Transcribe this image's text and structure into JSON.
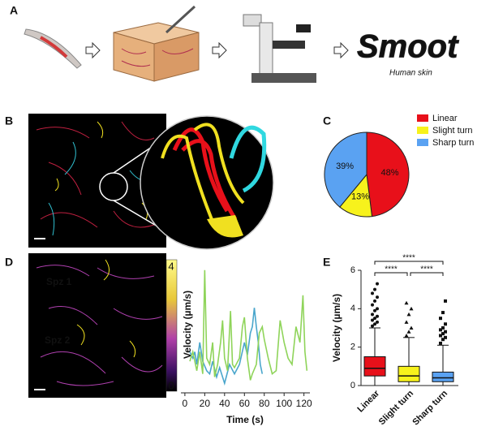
{
  "panel_labels": [
    "A",
    "B",
    "C",
    "D",
    "E"
  ],
  "logo": {
    "title": "Smoot",
    "subtitle": "Human skin"
  },
  "chart_data": [
    {
      "type": "pie",
      "categories": [
        "Linear",
        "Slight turn",
        "Sharp turn"
      ],
      "values": [
        48,
        13,
        39
      ],
      "value_labels": [
        "48%",
        "13%",
        "39%"
      ],
      "colors": [
        "#e8101a",
        "#f7f21c",
        "#5aa2f2"
      ]
    },
    {
      "type": "line",
      "y_label": "Velocity (µm/s)",
      "x_label": "Time (s)",
      "series": [
        {
          "name": "Spz 1",
          "color": "#4aa6cc",
          "x": [
            5,
            8,
            10,
            12,
            15,
            18,
            22,
            25,
            28,
            32,
            35,
            40,
            45,
            50,
            55,
            60,
            63,
            66,
            68,
            70,
            72,
            74,
            76,
            78
          ],
          "values": [
            1.2,
            1.0,
            1.2,
            0.8,
            1.5,
            0.9,
            0.6,
            0.5,
            0.9,
            0.4,
            0.7,
            0.2,
            0.8,
            0.5,
            0.8,
            1.5,
            1.1,
            1.8,
            2.0,
            2.6,
            2.0,
            1.5,
            0.8,
            0.5
          ]
        },
        {
          "name": "Spz 2",
          "color": "#8fd45a",
          "x": [
            5,
            8,
            12,
            15,
            18,
            20,
            22,
            25,
            28,
            30,
            33,
            36,
            38,
            40,
            43,
            46,
            48,
            50,
            55,
            58,
            60,
            63,
            66,
            68,
            72,
            75,
            78,
            80,
            84,
            88,
            92,
            96,
            100,
            104,
            108,
            112,
            116,
            119,
            121,
            123
          ],
          "values": [
            0.9,
            1.2,
            0.6,
            1.2,
            0.5,
            3.8,
            1.0,
            0.8,
            1.5,
            0.4,
            0.8,
            1.5,
            2.2,
            1.0,
            0.6,
            2.5,
            0.8,
            0.7,
            1.0,
            2.0,
            2.3,
            1.0,
            0.3,
            0.5,
            0.8,
            1.8,
            2.0,
            1.6,
            1.0,
            0.5,
            0.6,
            2.2,
            1.5,
            1.0,
            0.8,
            2.0,
            1.5,
            3.0,
            1.2,
            0.6
          ]
        }
      ],
      "xlim": [
        -4,
        126
      ],
      "xticks": [
        0,
        20,
        40,
        60,
        80,
        100,
        120
      ],
      "ylim": [
        0,
        4
      ],
      "yticks": [
        0,
        4
      ]
    },
    {
      "type": "box",
      "y_label": "Velocity (µm/s)",
      "categories": [
        "Linear",
        "Slight turn",
        "Sharp turn"
      ],
      "colors": [
        "#e8101a",
        "#f7f21c",
        "#5aa2f2"
      ],
      "stats": [
        {
          "min": 0,
          "q1": 0.5,
          "median": 0.9,
          "q3": 1.5,
          "max": 3.0,
          "outliers": [
            3.1,
            3.2,
            3.3,
            3.4,
            3.5,
            3.6,
            3.7,
            3.9,
            4.0,
            4.2,
            4.4,
            4.6,
            4.8,
            5.0,
            5.3
          ]
        },
        {
          "min": 0,
          "q1": 0.2,
          "median": 0.5,
          "q3": 1.0,
          "max": 2.5,
          "outliers": [
            2.6,
            2.8,
            3.0,
            3.3,
            3.7,
            4.0,
            4.3
          ]
        },
        {
          "min": 0,
          "q1": 0.2,
          "median": 0.4,
          "q3": 0.7,
          "max": 2.1,
          "outliers": [
            2.2,
            2.4,
            2.5,
            2.6,
            2.7,
            2.8,
            2.9,
            3.0,
            3.2,
            3.5,
            3.8,
            4.4
          ]
        }
      ],
      "ylim": [
        0,
        6
      ],
      "yticks": [
        0,
        2,
        4,
        6
      ],
      "significance": [
        "****",
        "****",
        "****"
      ]
    }
  ]
}
